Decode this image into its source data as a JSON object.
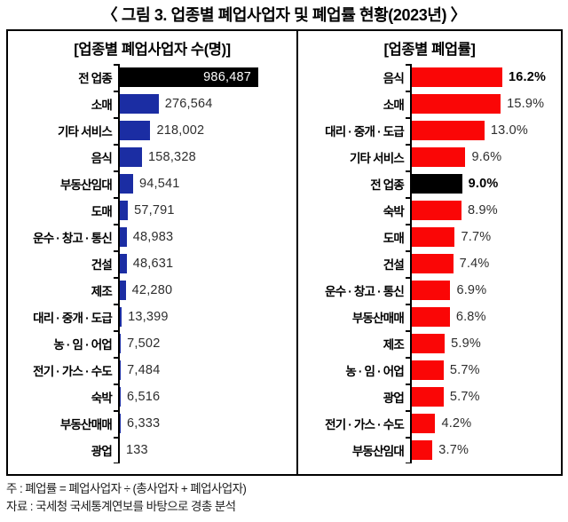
{
  "title": "〈 그림 3. 업종별 폐업사업자 및 폐업률 현황(2023년) 〉",
  "colors": {
    "blue": "#1b2da3",
    "red": "#fa0606",
    "black": "#000000"
  },
  "footnotes": [
    "주 : 폐업률 = 폐업사업자 ÷ (총사업자 + 폐업사업자)",
    "자료 : 국세청 국세통계연보를 바탕으로 경총 분석"
  ],
  "chart_data": [
    {
      "type": "bar",
      "orientation": "horizontal",
      "title": "[업종별 폐업사업자 수(명)]",
      "unit": "명",
      "xlim": [
        0,
        1000000
      ],
      "grid": false,
      "legend": "none",
      "rows": [
        {
          "label": "전 업종",
          "value": 986487,
          "display": "986,487",
          "color": "black",
          "value_inside": true,
          "bold_value": false
        },
        {
          "label": "소매",
          "value": 276564,
          "display": "276,564",
          "color": "blue",
          "value_inside": false,
          "bold_value": false
        },
        {
          "label": "기타 서비스",
          "value": 218002,
          "display": "218,002",
          "color": "blue",
          "value_inside": false,
          "bold_value": false
        },
        {
          "label": "음식",
          "value": 158328,
          "display": "158,328",
          "color": "blue",
          "value_inside": false,
          "bold_value": false
        },
        {
          "label": "부동산임대",
          "value": 94541,
          "display": "94,541",
          "color": "blue",
          "value_inside": false,
          "bold_value": false
        },
        {
          "label": "도매",
          "value": 57791,
          "display": "57,791",
          "color": "blue",
          "value_inside": false,
          "bold_value": false
        },
        {
          "label": "운수 · 창고 · 통신",
          "value": 48983,
          "display": "48,983",
          "color": "blue",
          "value_inside": false,
          "bold_value": false
        },
        {
          "label": "건설",
          "value": 48631,
          "display": "48,631",
          "color": "blue",
          "value_inside": false,
          "bold_value": false
        },
        {
          "label": "제조",
          "value": 42280,
          "display": "42,280",
          "color": "blue",
          "value_inside": false,
          "bold_value": false
        },
        {
          "label": "대리 · 중개 · 도급",
          "value": 13399,
          "display": "13,399",
          "color": "blue",
          "value_inside": false,
          "bold_value": false
        },
        {
          "label": "농 · 임 · 어업",
          "value": 7502,
          "display": "7,502",
          "color": "blue",
          "value_inside": false,
          "bold_value": false
        },
        {
          "label": "전기 · 가스 · 수도",
          "value": 7484,
          "display": "7,484",
          "color": "blue",
          "value_inside": false,
          "bold_value": false
        },
        {
          "label": "숙박",
          "value": 6516,
          "display": "6,516",
          "color": "blue",
          "value_inside": false,
          "bold_value": false
        },
        {
          "label": "부동산매매",
          "value": 6333,
          "display": "6,333",
          "color": "blue",
          "value_inside": false,
          "bold_value": false
        },
        {
          "label": "광업",
          "value": 133,
          "display": "133",
          "color": "blue",
          "value_inside": false,
          "bold_value": false
        }
      ]
    },
    {
      "type": "bar",
      "orientation": "horizontal",
      "title": "[업종별 폐업률]",
      "unit": "%",
      "xlim": [
        0,
        17
      ],
      "grid": false,
      "legend": "none",
      "rows": [
        {
          "label": "음식",
          "value": 16.2,
          "display": "16.2%",
          "color": "red",
          "value_inside": false,
          "bold_value": true
        },
        {
          "label": "소매",
          "value": 15.9,
          "display": "15.9%",
          "color": "red",
          "value_inside": false,
          "bold_value": false
        },
        {
          "label": "대리 · 중개 · 도급",
          "value": 13.0,
          "display": "13.0%",
          "color": "red",
          "value_inside": false,
          "bold_value": false
        },
        {
          "label": "기타 서비스",
          "value": 9.6,
          "display": "9.6%",
          "color": "red",
          "value_inside": false,
          "bold_value": false
        },
        {
          "label": "전 업종",
          "value": 9.0,
          "display": "9.0%",
          "color": "black",
          "value_inside": false,
          "bold_value": true
        },
        {
          "label": "숙박",
          "value": 8.9,
          "display": "8.9%",
          "color": "red",
          "value_inside": false,
          "bold_value": false
        },
        {
          "label": "도매",
          "value": 7.7,
          "display": "7.7%",
          "color": "red",
          "value_inside": false,
          "bold_value": false
        },
        {
          "label": "건설",
          "value": 7.4,
          "display": "7.4%",
          "color": "red",
          "value_inside": false,
          "bold_value": false
        },
        {
          "label": "운수 · 창고 · 통신",
          "value": 6.9,
          "display": "6.9%",
          "color": "red",
          "value_inside": false,
          "bold_value": false
        },
        {
          "label": "부동산매매",
          "value": 6.8,
          "display": "6.8%",
          "color": "red",
          "value_inside": false,
          "bold_value": false
        },
        {
          "label": "제조",
          "value": 5.9,
          "display": "5.9%",
          "color": "red",
          "value_inside": false,
          "bold_value": false
        },
        {
          "label": "농 · 임 · 어업",
          "value": 5.7,
          "display": "5.7%",
          "color": "red",
          "value_inside": false,
          "bold_value": false
        },
        {
          "label": "광업",
          "value": 5.7,
          "display": "5.7%",
          "color": "red",
          "value_inside": false,
          "bold_value": false
        },
        {
          "label": "전기 · 가스 · 수도",
          "value": 4.2,
          "display": "4.2%",
          "color": "red",
          "value_inside": false,
          "bold_value": false
        },
        {
          "label": "부동산임대",
          "value": 3.7,
          "display": "3.7%",
          "color": "red",
          "value_inside": false,
          "bold_value": false
        }
      ]
    }
  ]
}
